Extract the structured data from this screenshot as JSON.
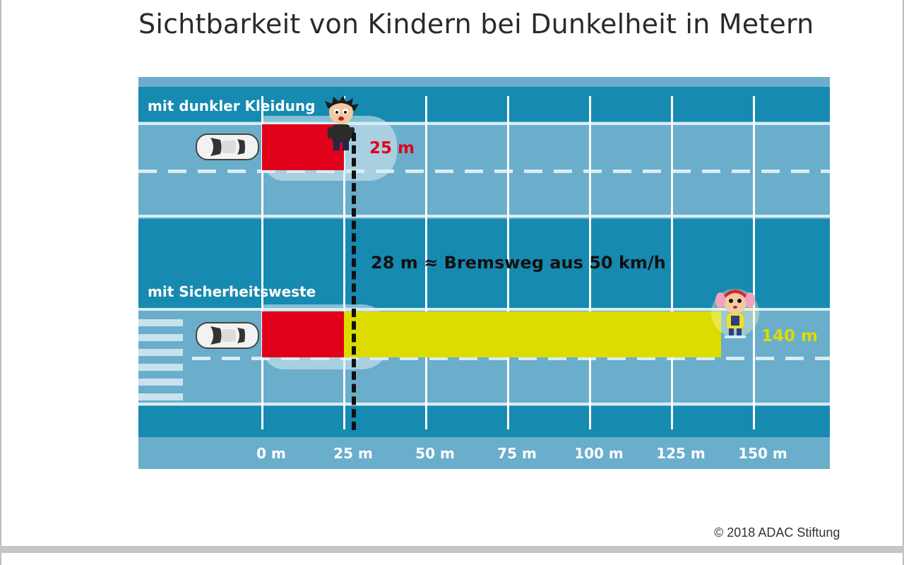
{
  "title": "Sichtbarkeit von Kindern bei Dunkelheit in Metern",
  "chart_data": {
    "type": "bar",
    "orientation": "horizontal",
    "categories": [
      "mit dunkler Kleidung",
      "mit Sicherheitsweste"
    ],
    "values": [
      25,
      140
    ],
    "value_labels": [
      "25 m",
      "140 m"
    ],
    "bar_colors": [
      "#e1001a",
      "#dcdc00"
    ],
    "xlim": [
      0,
      150
    ],
    "x_ticks": [
      "0 m",
      "25 m",
      "50 m",
      "75 m",
      "100 m",
      "125 m",
      "150 m"
    ],
    "reference_line": {
      "value": 28,
      "label": "28 m ≈ Bremsweg aus 50 km/h",
      "style": "dashed"
    }
  },
  "colors": {
    "road_light": "#6aaecb",
    "road_dark": "#168ab0",
    "red": "#e1001a",
    "yellow": "#dcdc00"
  },
  "copyright": "© 2018 ADAC Stiftung"
}
